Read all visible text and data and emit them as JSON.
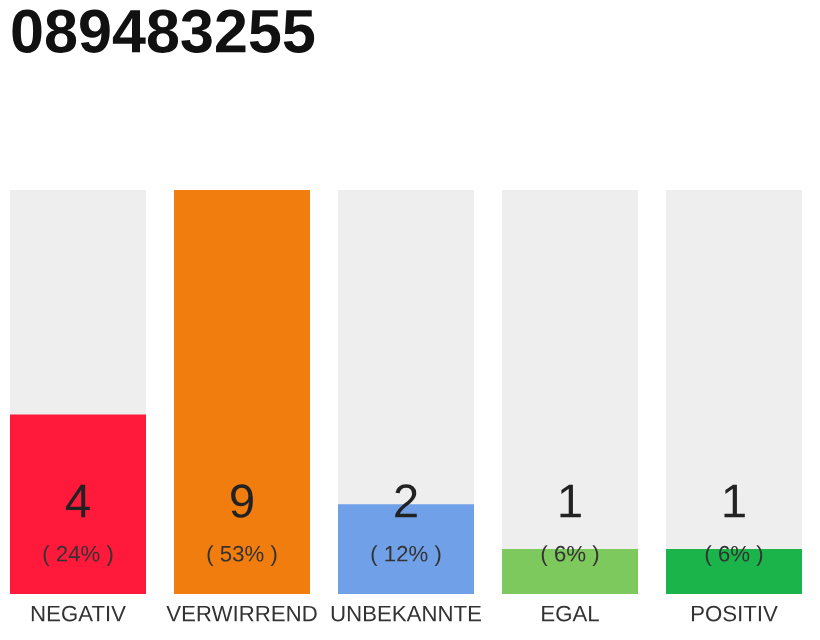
{
  "chart_data": {
    "type": "bar",
    "title": "089483255",
    "categories": [
      "NEGATIV",
      "VERWIRREND",
      "UNBEKANNTE",
      "EGAL",
      "POSITIV"
    ],
    "values": [
      4,
      9,
      2,
      1,
      1
    ],
    "colors": [
      "#ff1a3c",
      "#f07d0e",
      "#6fa0e8",
      "#7dc95e",
      "#1bb44a"
    ],
    "value_labels": [
      "4\n( 24% )",
      "9\n( 53% )",
      "2\n( 12% )",
      "1\n( 6% )",
      "1\n( 6% )"
    ],
    "grid": false,
    "legend": false
  }
}
